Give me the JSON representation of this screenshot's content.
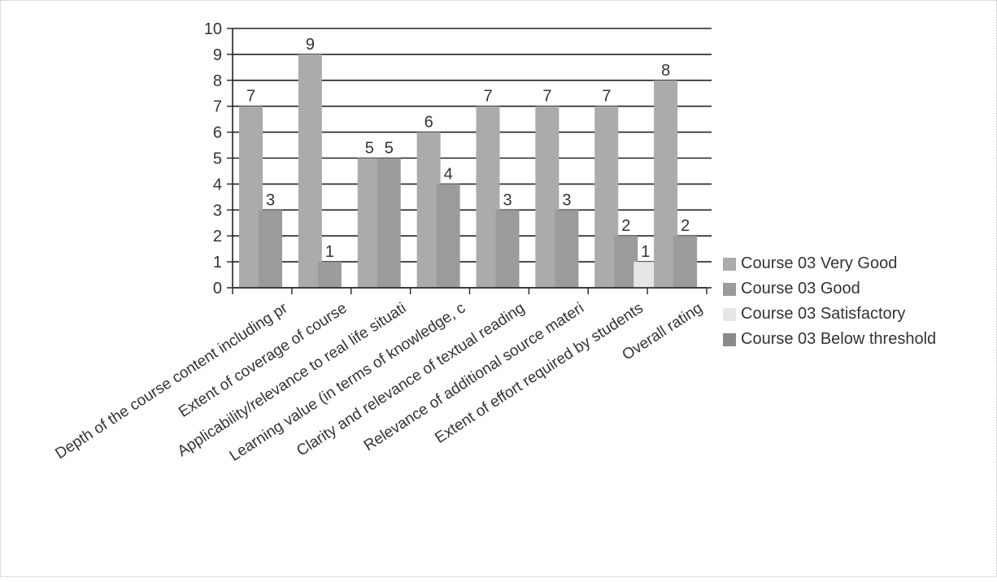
{
  "chart_data": {
    "type": "bar",
    "title": "",
    "xlabel": "",
    "ylabel": "",
    "ylim": [
      0,
      10
    ],
    "yticks": [
      0,
      1,
      2,
      3,
      4,
      5,
      6,
      7,
      8,
      9,
      10
    ],
    "grid": true,
    "legend_position": "right",
    "categories": [
      "Depth of the course content including pr",
      "Extent of coverage of course",
      "Applicability/relevance  to real life situati",
      "Learning  value (in  terms of knowledge, c",
      "Clarity  and  relevance  of  textual reading",
      "Relevance   of   additional   source materi",
      "Extent of effort required by students",
      "Overall rating"
    ],
    "series": [
      {
        "name": "Course 03 Very Good",
        "color": "#ababab",
        "values": [
          7,
          9,
          5,
          6,
          7,
          7,
          7,
          8
        ]
      },
      {
        "name": "Course 03 Good",
        "color": "#9b9b9b",
        "values": [
          3,
          1,
          5,
          4,
          3,
          3,
          2,
          2
        ]
      },
      {
        "name": "Course 03 Satisfactory",
        "color": "#e6e6e6",
        "values": [
          0,
          0,
          0,
          0,
          0,
          0,
          1,
          0
        ]
      },
      {
        "name": "Course 03 Below threshold",
        "color": "#8a8a8a",
        "values": [
          0,
          0,
          0,
          0,
          0,
          0,
          0,
          0
        ]
      }
    ]
  }
}
